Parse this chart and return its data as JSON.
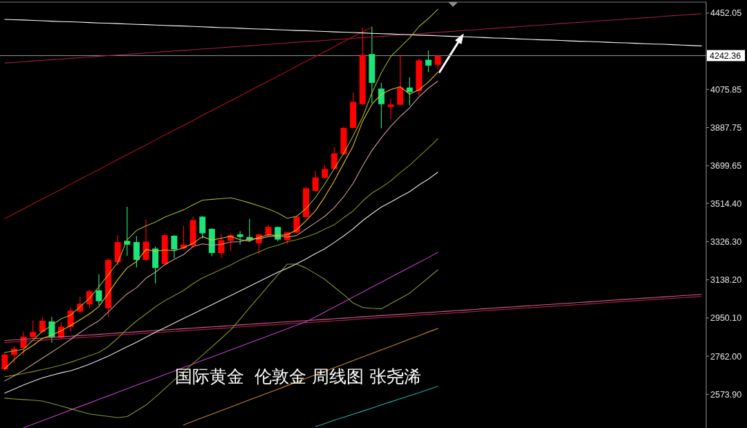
{
  "chart_data": {
    "type": "candlestick",
    "title": "国际黄金  伦敦金 周线图 张尧浠",
    "categories": [
      null,
      null,
      null,
      null,
      null,
      null,
      null,
      null,
      null,
      null,
      null,
      null,
      null,
      null,
      null,
      null,
      null,
      null,
      null,
      null,
      null,
      null,
      null,
      null,
      null,
      null,
      null,
      null,
      null,
      null,
      null,
      null,
      null,
      null,
      null,
      null,
      null,
      null,
      null,
      null,
      null,
      null,
      null,
      null,
      null,
      null,
      null,
      null,
      null,
      null,
      null,
      null,
      null,
      null,
      null,
      null,
      null,
      null,
      null,
      null,
      null,
      null,
      null,
      null,
      null,
      null,
      null,
      null,
      null,
      null,
      null,
      null,
      null,
      null,
      null
    ],
    "ohlc": [
      [
        2697,
        2779,
        2690,
        2770
      ],
      [
        2768,
        2813,
        2728,
        2799
      ],
      [
        2802,
        2883,
        2768,
        2858
      ],
      [
        2855,
        2938,
        2852,
        2881
      ],
      [
        2881,
        2955,
        2879,
        2936
      ],
      [
        2933,
        2955,
        2828,
        2855
      ],
      [
        2853,
        2929,
        2849,
        2907
      ],
      [
        2906,
        3003,
        2881,
        2986
      ],
      [
        2981,
        3055,
        2979,
        3020
      ],
      [
        3017,
        3088,
        2997,
        3082
      ],
      [
        3086,
        3165,
        3014,
        3033
      ],
      [
        2998,
        3245,
        2955,
        3236
      ],
      [
        3224,
        3358,
        3210,
        3324
      ],
      [
        3330,
        3498,
        3256,
        3311
      ],
      [
        3324,
        3353,
        3199,
        3236
      ],
      [
        3236,
        3435,
        3232,
        3326
      ],
      [
        3292,
        3301,
        3120,
        3196
      ],
      [
        3216,
        3362,
        3212,
        3358
      ],
      [
        3355,
        3358,
        3245,
        3287
      ],
      [
        3292,
        3404,
        3290,
        3311
      ],
      [
        3307,
        3449,
        3296,
        3432
      ],
      [
        3449,
        3452,
        3341,
        3367
      ],
      [
        3389,
        3392,
        3254,
        3270
      ],
      [
        3270,
        3364,
        3245,
        3333
      ],
      [
        3330,
        3367,
        3279,
        3358
      ],
      [
        3362,
        3378,
        3311,
        3349
      ],
      [
        3349,
        3438,
        3324,
        3333
      ],
      [
        3318,
        3364,
        3265,
        3362
      ],
      [
        3360,
        3409,
        3353,
        3398
      ],
      [
        3398,
        3400,
        3328,
        3336
      ],
      [
        3333,
        3374,
        3313,
        3372
      ],
      [
        3370,
        3452,
        3367,
        3449
      ],
      [
        3447,
        3599,
        3438,
        3589
      ],
      [
        3576,
        3674,
        3574,
        3642
      ],
      [
        3640,
        3705,
        3637,
        3684
      ],
      [
        3684,
        3792,
        3682,
        3761
      ],
      [
        3756,
        3892,
        3753,
        3886
      ],
      [
        3886,
        4059,
        3884,
        4014
      ],
      [
        4003,
        4381,
        4000,
        4246
      ],
      [
        4250,
        4384,
        4008,
        4108
      ],
      [
        4080,
        4108,
        3884,
        4003
      ],
      [
        3989,
        4028,
        3928,
        4002
      ],
      [
        4000,
        4247,
        3998,
        4085
      ],
      [
        4085,
        4136,
        3997,
        4062
      ],
      [
        4068,
        4227,
        4042,
        4219
      ],
      [
        4222,
        4267,
        4162,
        4193
      ],
      [
        4197,
        4245,
        4174,
        4242.36
      ],
      null,
      null,
      null,
      null,
      null,
      null,
      null,
      null,
      null,
      null,
      null,
      null,
      null,
      null,
      null,
      null,
      null,
      null,
      null,
      null,
      null,
      null,
      null,
      null,
      null,
      null,
      null,
      null
    ],
    "series": [
      {
        "type": "line",
        "color": "#a0203c",
        "values": [
          4206,
          4209,
          4212,
          4216,
          4219,
          4222,
          4225,
          4229,
          4232,
          4235,
          4239,
          4242,
          4245,
          4248,
          4252,
          4255,
          4258,
          4262,
          4265,
          4268,
          4271,
          4275,
          4278,
          4281,
          4285,
          4288,
          4291,
          4294,
          4298,
          4301,
          4304,
          4308,
          4311,
          4314,
          4317,
          4321,
          4324,
          4327,
          4331,
          4334,
          4337,
          4340,
          4344,
          4347,
          4350,
          4354,
          4357,
          4360,
          4363,
          4367,
          4370,
          4373,
          4377,
          4380,
          4383,
          4386,
          4390,
          4393,
          4396,
          4400,
          4403,
          4406,
          4409,
          4413,
          4416,
          4419,
          4422,
          4426,
          4429,
          4432,
          4436,
          4439,
          4442,
          4445,
          4449
        ]
      },
      {
        "type": "line",
        "color": "#b01020",
        "values": [
          3439,
          3463,
          3488,
          3512,
          3536,
          3560,
          3584,
          3609,
          3633,
          3657,
          3681,
          3706,
          3730,
          3754,
          3778,
          3802,
          3827,
          3851,
          3875,
          3899,
          3923,
          3948,
          3972,
          3996,
          4020,
          4044,
          4069,
          4093,
          4117,
          4141,
          4165,
          4190,
          4214,
          4238,
          4262,
          4286,
          4311,
          4335,
          4359,
          4383,
          null,
          null,
          null,
          null,
          null,
          null,
          null,
          null,
          null,
          null,
          null,
          null,
          null,
          null,
          null,
          null,
          null,
          null,
          null,
          null,
          null,
          null,
          null,
          null,
          null,
          null,
          null,
          null,
          null,
          null,
          null,
          null,
          null,
          null,
          null
        ]
      },
      {
        "type": "line",
        "color": "#ffffff",
        "values": [
          4421,
          4419,
          4418,
          4416,
          4414,
          4412,
          4410,
          4409,
          4407,
          4405,
          4403,
          4402,
          4400,
          4398,
          4396,
          4395,
          4393,
          4391,
          4389,
          4388,
          4386,
          4384,
          4382,
          4380,
          4379,
          4377,
          4375,
          4373,
          4372,
          4370,
          4368,
          4366,
          4365,
          4363,
          4361,
          4359,
          4358,
          4356,
          4354,
          4352,
          4350,
          4349,
          4347,
          4345,
          4343,
          4342,
          4340,
          4338,
          4336,
          4335,
          4333,
          4331,
          4329,
          4328,
          4326,
          4324,
          4322,
          4320,
          4319,
          4317,
          4315,
          4313,
          4312,
          4310,
          4308,
          4306,
          4305,
          4303,
          4301,
          4299,
          4298,
          4296,
          4294,
          4292,
          4290
        ]
      },
      {
        "type": "line",
        "color": "#d06090",
        "values": [
          2839,
          2842,
          2845,
          2848,
          2851,
          2854,
          2857,
          2860,
          2863,
          2866,
          2869,
          2873,
          2876,
          2879,
          2882,
          2885,
          2888,
          2891,
          2894,
          2897,
          2900,
          2903,
          2906,
          2909,
          2912,
          2916,
          2919,
          2922,
          2925,
          2928,
          2931,
          2934,
          2937,
          2940,
          2943,
          2946,
          2949,
          2952,
          2956,
          2959,
          2962,
          2965,
          2968,
          2971,
          2974,
          2977,
          2980,
          2983,
          2986,
          2989,
          2992,
          2996,
          2999,
          3002,
          3005,
          3008,
          3011,
          3014,
          3017,
          3020,
          3023,
          3026,
          3029,
          3032,
          3036,
          3039,
          3042,
          3045,
          3048,
          3051,
          3054,
          3057,
          3060,
          3063,
          3066
        ]
      },
      {
        "type": "line",
        "color": "#b02050",
        "values": [
          2829,
          2832,
          2835,
          2838,
          2841,
          2844,
          2847,
          2850,
          2853,
          2856,
          2859,
          2863,
          2866,
          2869,
          2872,
          2875,
          2878,
          2881,
          2884,
          2887,
          2890,
          2893,
          2896,
          2899,
          2902,
          2906,
          2909,
          2912,
          2915,
          2918,
          2921,
          2924,
          2927,
          2930,
          2933,
          2936,
          2939,
          2942,
          2946,
          2949,
          2952,
          2955,
          2958,
          2961,
          2964,
          2967,
          2970,
          2973,
          2976,
          2979,
          2982,
          2986,
          2989,
          2992,
          2995,
          2998,
          3001,
          3004,
          3007,
          3010,
          3013,
          3016,
          3019,
          3022,
          3026,
          3029,
          3032,
          3035,
          3038,
          3041,
          3044,
          3047,
          3050,
          3053,
          3056
        ]
      },
      {
        "type": "line",
        "color": "#19b4a8",
        "values": [
          null,
          null,
          null,
          null,
          null,
          null,
          null,
          null,
          null,
          null,
          null,
          null,
          null,
          null,
          null,
          null,
          null,
          null,
          null,
          null,
          null,
          null,
          null,
          null,
          null,
          null,
          null,
          null,
          null,
          null,
          null,
          null,
          null,
          2415,
          2430,
          2446,
          2461,
          2476,
          2491,
          2506,
          2522,
          2537,
          2552,
          2567,
          2582,
          2598,
          2613,
          null,
          null,
          null,
          null,
          null,
          null,
          null,
          null,
          null,
          null,
          null,
          null,
          null,
          null,
          null,
          null,
          null,
          null,
          null,
          null,
          null,
          null,
          null,
          null,
          null,
          null,
          null,
          null
        ]
      },
      {
        "type": "line",
        "color": "#c8842a",
        "values": [
          null,
          null,
          null,
          null,
          null,
          null,
          null,
          null,
          null,
          null,
          null,
          null,
          null,
          null,
          null,
          null,
          null,
          null,
          null,
          2423,
          2441,
          2459,
          2476,
          2494,
          2511,
          2529,
          2547,
          2564,
          2582,
          2599,
          2617,
          2634,
          2652,
          2670,
          2687,
          2705,
          2722,
          2740,
          2758,
          2775,
          2793,
          2810,
          2828,
          2846,
          2863,
          2881,
          2898,
          null,
          null,
          null,
          null,
          null,
          null,
          null,
          null,
          null,
          null,
          null,
          null,
          null,
          null,
          null,
          null,
          null,
          null,
          null,
          null,
          null,
          null,
          null,
          null,
          null,
          null,
          null,
          null
        ]
      },
      {
        "type": "line",
        "color": "#c83cc8",
        "values": [
          null,
          null,
          2409,
          2427,
          2444,
          2462,
          2479,
          2497,
          2514,
          2531,
          2549,
          2566,
          2584,
          2601,
          2619,
          2636,
          2653,
          2671,
          2688,
          2706,
          2723,
          2741,
          2758,
          2775,
          2793,
          2810,
          2828,
          2845,
          2862,
          2880,
          2897,
          2915,
          2932,
          2955,
          2979,
          3004,
          3028,
          3053,
          3077,
          3102,
          3126,
          3151,
          3175,
          3199,
          3224,
          3248,
          3273,
          null,
          null,
          null,
          null,
          null,
          null,
          null,
          null,
          null,
          null,
          null,
          null,
          null,
          null,
          null,
          null,
          null,
          null,
          null,
          null,
          null,
          null,
          null,
          null,
          null,
          null,
          null,
          null
        ]
      },
      {
        "type": "line",
        "color": "#7f9a2a",
        "values": [
          2555,
          2551,
          2548,
          2545,
          2541,
          2529,
          2516,
          2503,
          2490,
          2477,
          2471,
          2465,
          2459,
          2464,
          2492,
          2521,
          2560,
          2602,
          2644,
          2685,
          2726,
          2767,
          2808,
          2849,
          2891,
          2945,
          3000,
          3054,
          3108,
          3161,
          3215,
          3215,
          3196,
          3168,
          3140,
          3102,
          3065,
          3024,
          3002,
          2997,
          2995,
          3021,
          3046,
          3072,
          3110,
          3148,
          3187,
          null,
          null,
          null,
          null,
          null,
          null,
          null,
          null,
          null,
          null,
          null,
          null,
          null,
          null,
          null,
          null,
          null,
          null,
          null,
          null,
          null,
          null,
          null,
          null,
          null,
          null,
          null,
          null
        ]
      },
      {
        "type": "line",
        "color": "#e8e8e8",
        "values": [
          2580,
          2600,
          2620,
          2638,
          2655,
          2668,
          2680,
          2690,
          2705,
          2722,
          2742,
          2762,
          2785,
          2808,
          2830,
          2855,
          2880,
          2902,
          2925,
          2948,
          2970,
          2993,
          3015,
          3038,
          3060,
          3083,
          3106,
          3129,
          3152,
          3175,
          3195,
          3217,
          3241,
          3267,
          3291,
          3322,
          3354,
          3389,
          3429,
          3464,
          3496,
          3521,
          3547,
          3572,
          3605,
          3634,
          3668,
          null,
          null,
          null,
          null,
          null,
          null,
          null,
          null,
          null,
          null,
          null,
          null,
          null,
          null,
          null,
          null,
          null,
          null,
          null,
          null,
          null,
          null,
          null,
          null,
          null,
          null,
          null,
          null
        ]
      },
      {
        "type": "line",
        "color": "#7a9a1a",
        "values": [
          2660,
          2668,
          2676,
          2686,
          2696,
          2706,
          2718,
          2732,
          2748,
          2764,
          2780,
          2810,
          2850,
          2895,
          2935,
          2970,
          3005,
          3035,
          3060,
          3086,
          3119,
          3147,
          3168,
          3190,
          3211,
          3236,
          3257,
          3276,
          3295,
          3308,
          3325,
          3335,
          3349,
          3365,
          3388,
          3409,
          3444,
          3477,
          3525,
          3565,
          3593,
          3625,
          3666,
          3702,
          3745,
          3787,
          3833,
          null,
          null,
          null,
          null,
          null,
          null,
          null,
          null,
          null,
          null,
          null,
          null,
          null,
          null,
          null,
          null,
          null,
          null,
          null,
          null,
          null,
          null,
          null,
          null,
          null,
          null,
          null,
          null
        ]
      },
      {
        "type": "line",
        "color": "#9ab82c",
        "values": [
          2780,
          2788,
          2796,
          2841,
          2884,
          2914,
          2946,
          2964,
          3005,
          3047,
          3103,
          3163,
          3222,
          3335,
          3381,
          3403,
          3422,
          3447,
          3465,
          3483,
          3507,
          3530,
          3534,
          3538,
          3542,
          3530,
          3517,
          3502,
          3487,
          3467,
          3441,
          3451,
          3489,
          3543,
          3611,
          3685,
          3761,
          3846,
          3938,
          4059,
          4158,
          4238,
          4283,
          4329,
          4386,
          4425,
          4471,
          null,
          null,
          null,
          null,
          null,
          null,
          null,
          null,
          null,
          null,
          null,
          null,
          null,
          null,
          null,
          null,
          null,
          null,
          null,
          null,
          null,
          null,
          null,
          null,
          null,
          null,
          null,
          null
        ]
      },
      {
        "type": "line",
        "color": "#c8a098",
        "values": [
          2640,
          2665,
          2692,
          2722,
          2752,
          2782,
          2812,
          2845,
          2878,
          2909,
          2936,
          2979,
          3026,
          3069,
          3099,
          3146,
          3175,
          3212,
          3239,
          3262,
          3302,
          3315,
          3309,
          3312,
          3324,
          3326,
          3340,
          3340,
          3351,
          3354,
          3348,
          3356,
          3388,
          3419,
          3451,
          3493,
          3548,
          3613,
          3698,
          3775,
          3838,
          3894,
          3943,
          3985,
          4039,
          4082,
          4117,
          null,
          null,
          null,
          null,
          null,
          null,
          null,
          null,
          null,
          null,
          null,
          null,
          null,
          null,
          null,
          null,
          null,
          null,
          null,
          null,
          null,
          null,
          null,
          null,
          null,
          null,
          null,
          null
        ]
      },
      {
        "type": "line",
        "color": "#e8c020",
        "values": [
          2700,
          2745,
          2785,
          2815,
          2849,
          2866,
          2887,
          2913,
          2941,
          2970,
          3006,
          3071,
          3139,
          3197,
          3228,
          3287,
          3279,
          3285,
          3281,
          3296,
          3317,
          3351,
          3333,
          3343,
          3352,
          3335,
          3329,
          3347,
          3360,
          3356,
          3360,
          3383,
          3429,
          3478,
          3547,
          3625,
          3712,
          3797,
          3918,
          4003,
          4051,
          4075,
          4089,
          4052,
          4074,
          4112,
          4160,
          null,
          null,
          null,
          null,
          null,
          null,
          null,
          null,
          null,
          null,
          null,
          null,
          null,
          null,
          null,
          null,
          null,
          null,
          null,
          null,
          null,
          null,
          null,
          null,
          null,
          null,
          null,
          null
        ]
      }
    ],
    "ylim": [
      2408,
      4506
    ],
    "yticks": [
      4452.05,
      4075.85,
      3887.75,
      3699.65,
      {
        "value": 3514.4,
        "label": "3514.40"
      },
      {
        "value": 3326.3,
        "label": "3326.30"
      },
      {
        "value": 3138.2,
        "label": "3138.20"
      },
      {
        "value": 2950.1,
        "label": "2950.10"
      },
      {
        "value": 2762,
        "label": "2762.00"
      },
      {
        "value": 2573.9,
        "label": "2573.90"
      }
    ],
    "tick_labels": "y",
    "ref_lines": [
      {
        "axis": "y",
        "value": 4242.36,
        "label": "4242.36",
        "color": "#9a9a9a"
      }
    ]
  }
}
